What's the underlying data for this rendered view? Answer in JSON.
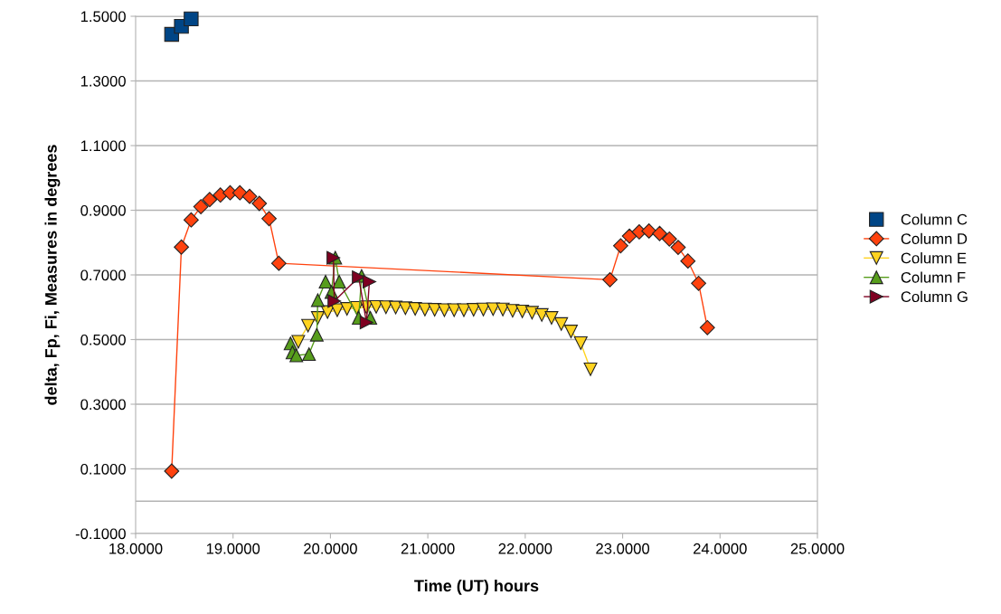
{
  "chart_data": {
    "type": "line",
    "xlabel": "Time (UT) hours",
    "ylabel": "delta, Fp, Fi, Measures in degrees",
    "xlim": [
      18,
      25
    ],
    "ylim": [
      -0.1,
      1.5
    ],
    "xticks": [
      {
        "value": 18,
        "label": "18.0000"
      },
      {
        "value": 19,
        "label": "19.0000"
      },
      {
        "value": 20,
        "label": "20.0000"
      },
      {
        "value": 21,
        "label": "21.0000"
      },
      {
        "value": 22,
        "label": "22.0000"
      },
      {
        "value": 23,
        "label": "23.0000"
      },
      {
        "value": 24,
        "label": "24.0000"
      },
      {
        "value": 25,
        "label": "25.0000"
      }
    ],
    "yticks": [
      {
        "value": -0.1,
        "label": "-0.1000"
      },
      {
        "value": 0.1,
        "label": "0.1000"
      },
      {
        "value": 0.3,
        "label": "0.3000"
      },
      {
        "value": 0.5,
        "label": "0.5000"
      },
      {
        "value": 0.7,
        "label": "0.7000"
      },
      {
        "value": 0.9,
        "label": "0.9000"
      },
      {
        "value": 1.1,
        "label": "1.1000"
      },
      {
        "value": 1.3,
        "label": "1.3000"
      },
      {
        "value": 1.5,
        "label": "1.5000"
      }
    ],
    "grid": "y",
    "legend": "right",
    "line_style": "solid",
    "ref_lines": [
      {
        "axis": "y",
        "value": 0,
        "color": "#b3b3b3"
      }
    ],
    "series": [
      {
        "name": "Column C",
        "type": "scatter",
        "color": "#004586",
        "marker": "square",
        "x": [
          18.37,
          18.47,
          18.57
        ],
        "values": [
          1.444,
          1.469,
          1.492
        ]
      },
      {
        "name": "Column D",
        "color": "#ff420e",
        "marker": "diamond",
        "x": [
          18.37,
          18.47,
          18.57,
          18.67,
          18.76,
          18.87,
          18.97,
          19.07,
          19.17,
          19.27,
          19.37,
          19.47,
          22.87,
          22.98,
          23.07,
          23.17,
          23.27,
          23.38,
          23.48,
          23.57,
          23.67,
          23.78,
          23.87
        ],
        "values": [
          0.093,
          0.786,
          0.87,
          0.911,
          0.933,
          0.947,
          0.954,
          0.954,
          0.943,
          0.921,
          0.874,
          0.736,
          0.685,
          0.79,
          0.82,
          0.833,
          0.836,
          0.828,
          0.811,
          0.785,
          0.743,
          0.674,
          0.537
        ]
      },
      {
        "name": "Column E",
        "color": "#ffd320",
        "marker": "triangle_down",
        "x": [
          19.67,
          19.77,
          19.87,
          19.97,
          20.07,
          20.17,
          20.27,
          20.37,
          20.47,
          20.57,
          20.67,
          20.77,
          20.87,
          20.97,
          21.07,
          21.17,
          21.27,
          21.37,
          21.47,
          21.57,
          21.67,
          21.77,
          21.87,
          21.97,
          22.07,
          22.17,
          22.27,
          22.37,
          22.47,
          22.57,
          22.67
        ],
        "values": [
          0.493,
          0.543,
          0.567,
          0.585,
          0.591,
          0.595,
          0.598,
          0.6,
          0.601,
          0.6,
          0.599,
          0.597,
          0.595,
          0.593,
          0.592,
          0.591,
          0.591,
          0.591,
          0.592,
          0.593,
          0.594,
          0.593,
          0.589,
          0.587,
          0.583,
          0.576,
          0.567,
          0.548,
          0.525,
          0.489,
          0.408
        ]
      },
      {
        "name": "Column F",
        "color": "#579d1c",
        "marker": "triangle",
        "x": [
          19.59,
          19.61,
          19.65,
          19.78,
          19.86,
          19.87,
          19.95,
          20.01,
          20.05,
          20.09,
          20.29,
          20.32,
          20.41
        ],
        "values": [
          0.488,
          0.46,
          0.451,
          0.455,
          0.515,
          0.622,
          0.679,
          0.647,
          0.753,
          0.679,
          0.567,
          0.697,
          0.567
        ]
      },
      {
        "name": "Column G",
        "color": "#7e0021",
        "marker": "triangle_right",
        "x": [
          20.03,
          20.04,
          20.29,
          20.37,
          20.4
        ],
        "values": [
          0.753,
          0.619,
          0.693,
          0.553,
          0.679
        ]
      }
    ]
  }
}
